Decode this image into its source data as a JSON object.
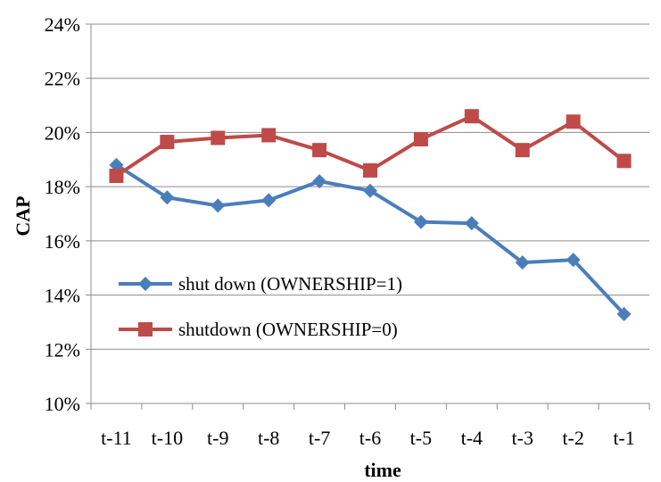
{
  "chart_data": {
    "type": "line",
    "title": "",
    "xlabel": "time",
    "ylabel": "CAP",
    "categories": [
      "t-11",
      "t-10",
      "t-9",
      "t-8",
      "t-7",
      "t-6",
      "t-5",
      "t-4",
      "t-3",
      "t-2",
      "t-1"
    ],
    "ylim": [
      0.1,
      0.24
    ],
    "yticks": [
      0.1,
      0.12,
      0.14,
      0.16,
      0.18,
      0.2,
      0.22,
      0.24
    ],
    "ytick_labels": [
      "10%",
      "12%",
      "14%",
      "16%",
      "18%",
      "20%",
      "22%",
      "24%"
    ],
    "grid": "horizontal",
    "legend_position": "left-center",
    "series": [
      {
        "name": "shut down (OWNERSHIP=1)",
        "marker": "diamond",
        "color": "#4a7ebb",
        "values": [
          0.188,
          0.176,
          0.173,
          0.175,
          0.182,
          0.1785,
          0.167,
          0.1665,
          0.152,
          0.153,
          0.133
        ]
      },
      {
        "name": "shutdown (OWNERSHIP=0)",
        "marker": "square",
        "color": "#be4b48",
        "values": [
          0.184,
          0.1965,
          0.198,
          0.199,
          0.1935,
          0.186,
          0.1975,
          0.206,
          0.1935,
          0.204,
          0.1895
        ]
      }
    ]
  }
}
